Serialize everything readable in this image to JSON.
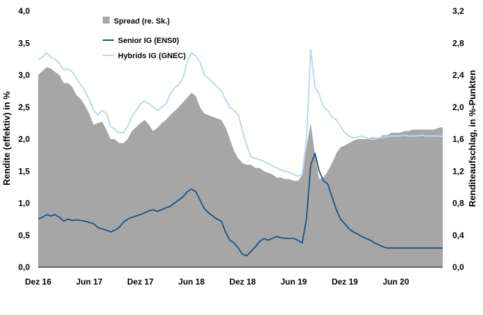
{
  "chart_data": {
    "type": "area+line",
    "title": "",
    "ylabel_left": "Rendite (effektiv) in %",
    "ylabel_right": "Renditeaufschlag, in %-Punkten",
    "ylim_left": [
      0,
      4
    ],
    "ylim_right": [
      0,
      3.2
    ],
    "y_ticks_left": [
      "0,0",
      "0,5",
      "1,0",
      "1,5",
      "2,0",
      "2,5",
      "3,0",
      "3,5",
      "4,0"
    ],
    "y_ticks_right": [
      "0,0",
      "0,4",
      "0,8",
      "1,2",
      "1,6",
      "2,0",
      "2,4",
      "2,8",
      "3,2"
    ],
    "x_ticks": [
      "Dez 16",
      "Jun 17",
      "Dez 17",
      "Jun 18",
      "Dez 18",
      "Jun 19",
      "Dez 19",
      "Jun 20"
    ],
    "legend": [
      {
        "label": "Spread (re. Sk.)",
        "color": "#a6a6a6",
        "kind": "area"
      },
      {
        "label": "Senior IG (ENS0)",
        "color": "#1f4e79",
        "kind": "line"
      },
      {
        "label": "Hybrids IG (GNEC)",
        "color": "#bdd7ee",
        "kind": "line"
      }
    ],
    "x": [
      0,
      0.5,
      1,
      1.5,
      2,
      2.5,
      3,
      3.5,
      4,
      4.5,
      5,
      5.5,
      6,
      6.5,
      7,
      7.5,
      8,
      8.5,
      9,
      9.5,
      10,
      10.5,
      11,
      11.5,
      12,
      12.5,
      13,
      13.5,
      14,
      14.5,
      15,
      15.5,
      16,
      16.5,
      17,
      17.5,
      18,
      18.5,
      19,
      19.5,
      20,
      20.5,
      21,
      21.5,
      22,
      22.5,
      23,
      23.5,
      24,
      24.5,
      25,
      25.5,
      26,
      26.5,
      27,
      27.5,
      28,
      28.5,
      29,
      29.5,
      30,
      30.5,
      31,
      31.5,
      32,
      32.5,
      33,
      33.5,
      34,
      34.5,
      35,
      35.5,
      36,
      36.5,
      37,
      37.5,
      38,
      38.5,
      39,
      39.5,
      40,
      40.5,
      41,
      41.5,
      42,
      42.5,
      43,
      43.5,
      44,
      44.5,
      45,
      45.5,
      46,
      46.5,
      47,
      47.5
    ],
    "series": [
      {
        "name": "Hybrids IG (GNEC)",
        "axis": "left",
        "values": [
          3.25,
          3.28,
          3.35,
          3.28,
          3.25,
          3.18,
          3.08,
          3.1,
          3.05,
          2.95,
          2.85,
          2.75,
          2.62,
          2.45,
          2.38,
          2.45,
          2.4,
          2.2,
          2.15,
          2.1,
          2.1,
          2.2,
          2.35,
          2.45,
          2.55,
          2.6,
          2.55,
          2.5,
          2.45,
          2.5,
          2.55,
          2.7,
          2.8,
          2.85,
          2.95,
          3.2,
          3.35,
          3.3,
          3.2,
          3.0,
          2.95,
          2.88,
          2.82,
          2.75,
          2.62,
          2.5,
          2.45,
          2.38,
          2.12,
          1.9,
          1.72,
          1.7,
          1.68,
          1.65,
          1.62,
          1.58,
          1.55,
          1.52,
          1.5,
          1.48,
          1.45,
          1.42,
          1.45,
          2.0,
          3.4,
          2.8,
          2.7,
          2.5,
          2.45,
          2.35,
          2.3,
          2.2,
          2.1,
          2.05,
          2.02,
          2.03,
          2.05,
          2.02,
          2.0,
          2.0,
          2.02,
          2.03,
          2.04,
          2.05,
          2.05,
          2.05,
          2.06,
          2.05,
          2.05,
          2.05,
          2.06,
          2.05,
          2.05,
          2.05,
          2.05,
          2.04
        ]
      },
      {
        "name": "Senior IG (ENS0)",
        "axis": "left",
        "values": [
          0.75,
          0.78,
          0.82,
          0.8,
          0.82,
          0.78,
          0.72,
          0.75,
          0.73,
          0.74,
          0.73,
          0.72,
          0.7,
          0.68,
          0.62,
          0.6,
          0.58,
          0.55,
          0.58,
          0.62,
          0.7,
          0.75,
          0.78,
          0.8,
          0.82,
          0.85,
          0.88,
          0.9,
          0.87,
          0.9,
          0.93,
          0.95,
          1.0,
          1.05,
          1.1,
          1.18,
          1.22,
          1.18,
          1.05,
          0.92,
          0.85,
          0.8,
          0.75,
          0.72,
          0.55,
          0.42,
          0.38,
          0.3,
          0.2,
          0.18,
          0.25,
          0.32,
          0.4,
          0.45,
          0.42,
          0.45,
          0.48,
          0.46,
          0.45,
          0.45,
          0.45,
          0.42,
          0.38,
          0.75,
          1.6,
          1.78,
          1.5,
          1.35,
          1.3,
          1.1,
          0.9,
          0.75,
          0.68,
          0.6,
          0.55,
          0.52,
          0.48,
          0.45,
          0.42,
          0.38,
          0.35,
          0.32,
          0.3,
          0.3,
          0.3,
          0.3,
          0.3,
          0.3,
          0.3,
          0.3,
          0.3,
          0.3,
          0.3,
          0.3,
          0.3,
          0.3
        ]
      },
      {
        "name": "Spread (re. Sk.)",
        "axis": "right",
        "values": [
          2.4,
          2.45,
          2.5,
          2.48,
          2.44,
          2.4,
          2.3,
          2.3,
          2.25,
          2.15,
          2.1,
          2.02,
          1.92,
          1.78,
          1.8,
          1.82,
          1.72,
          1.6,
          1.6,
          1.55,
          1.55,
          1.6,
          1.7,
          1.75,
          1.8,
          1.84,
          1.78,
          1.7,
          1.74,
          1.8,
          1.84,
          1.9,
          1.95,
          2.0,
          2.06,
          2.12,
          2.18,
          2.14,
          2.0,
          1.92,
          1.9,
          1.88,
          1.86,
          1.84,
          1.75,
          1.6,
          1.45,
          1.36,
          1.3,
          1.28,
          1.28,
          1.24,
          1.24,
          1.2,
          1.18,
          1.16,
          1.12,
          1.12,
          1.1,
          1.1,
          1.08,
          1.08,
          1.15,
          1.5,
          1.8,
          1.4,
          1.1,
          1.12,
          1.2,
          1.3,
          1.42,
          1.5,
          1.52,
          1.55,
          1.58,
          1.6,
          1.6,
          1.6,
          1.62,
          1.62,
          1.62,
          1.65,
          1.65,
          1.68,
          1.68,
          1.68,
          1.7,
          1.7,
          1.72,
          1.72,
          1.72,
          1.72,
          1.72,
          1.72,
          1.74,
          1.75
        ]
      }
    ]
  }
}
